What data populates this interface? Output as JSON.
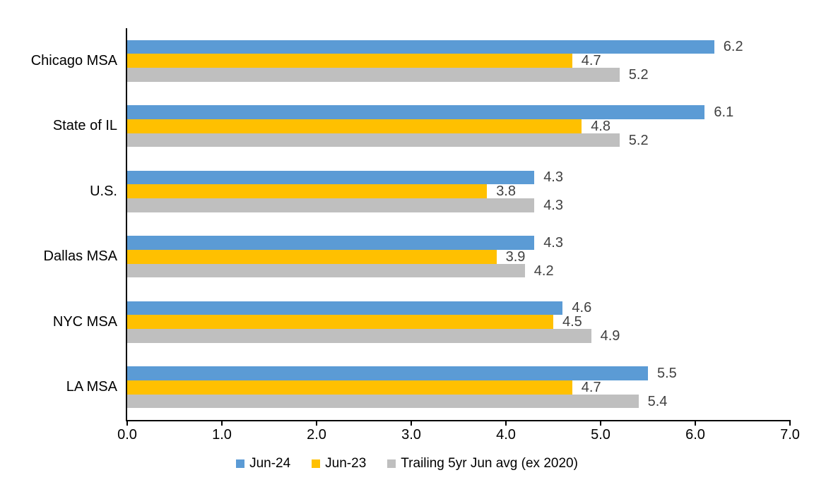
{
  "chart_data": {
    "type": "bar",
    "orientation": "horizontal",
    "title": "",
    "xlabel": "",
    "ylabel": "",
    "categories": [
      "Chicago MSA",
      "State of IL",
      "U.S.",
      "Dallas MSA",
      "NYC MSA",
      "LA MSA"
    ],
    "series": [
      {
        "name": "Jun-24",
        "color": "#5B9BD5",
        "values": [
          6.2,
          6.1,
          4.3,
          4.3,
          4.6,
          5.5
        ]
      },
      {
        "name": "Jun-23",
        "color": "#FFC000",
        "values": [
          4.7,
          4.8,
          3.8,
          3.9,
          4.5,
          4.7
        ]
      },
      {
        "name": "Trailing 5yr Jun avg (ex 2020)",
        "color": "#BFBFBF",
        "values": [
          5.2,
          5.2,
          4.3,
          4.2,
          4.9,
          5.4
        ]
      }
    ],
    "xlim": [
      0,
      7
    ],
    "x_tick_labels": [
      "0.0",
      "1.0",
      "2.0",
      "3.0",
      "4.0",
      "5.0",
      "6.0",
      "7.0"
    ],
    "grid": false,
    "legend_position": "bottom",
    "data_label_decimals": 1,
    "data_label_color": "#404040",
    "axis_color": "#000000",
    "background_color": "#FFFFFF"
  }
}
